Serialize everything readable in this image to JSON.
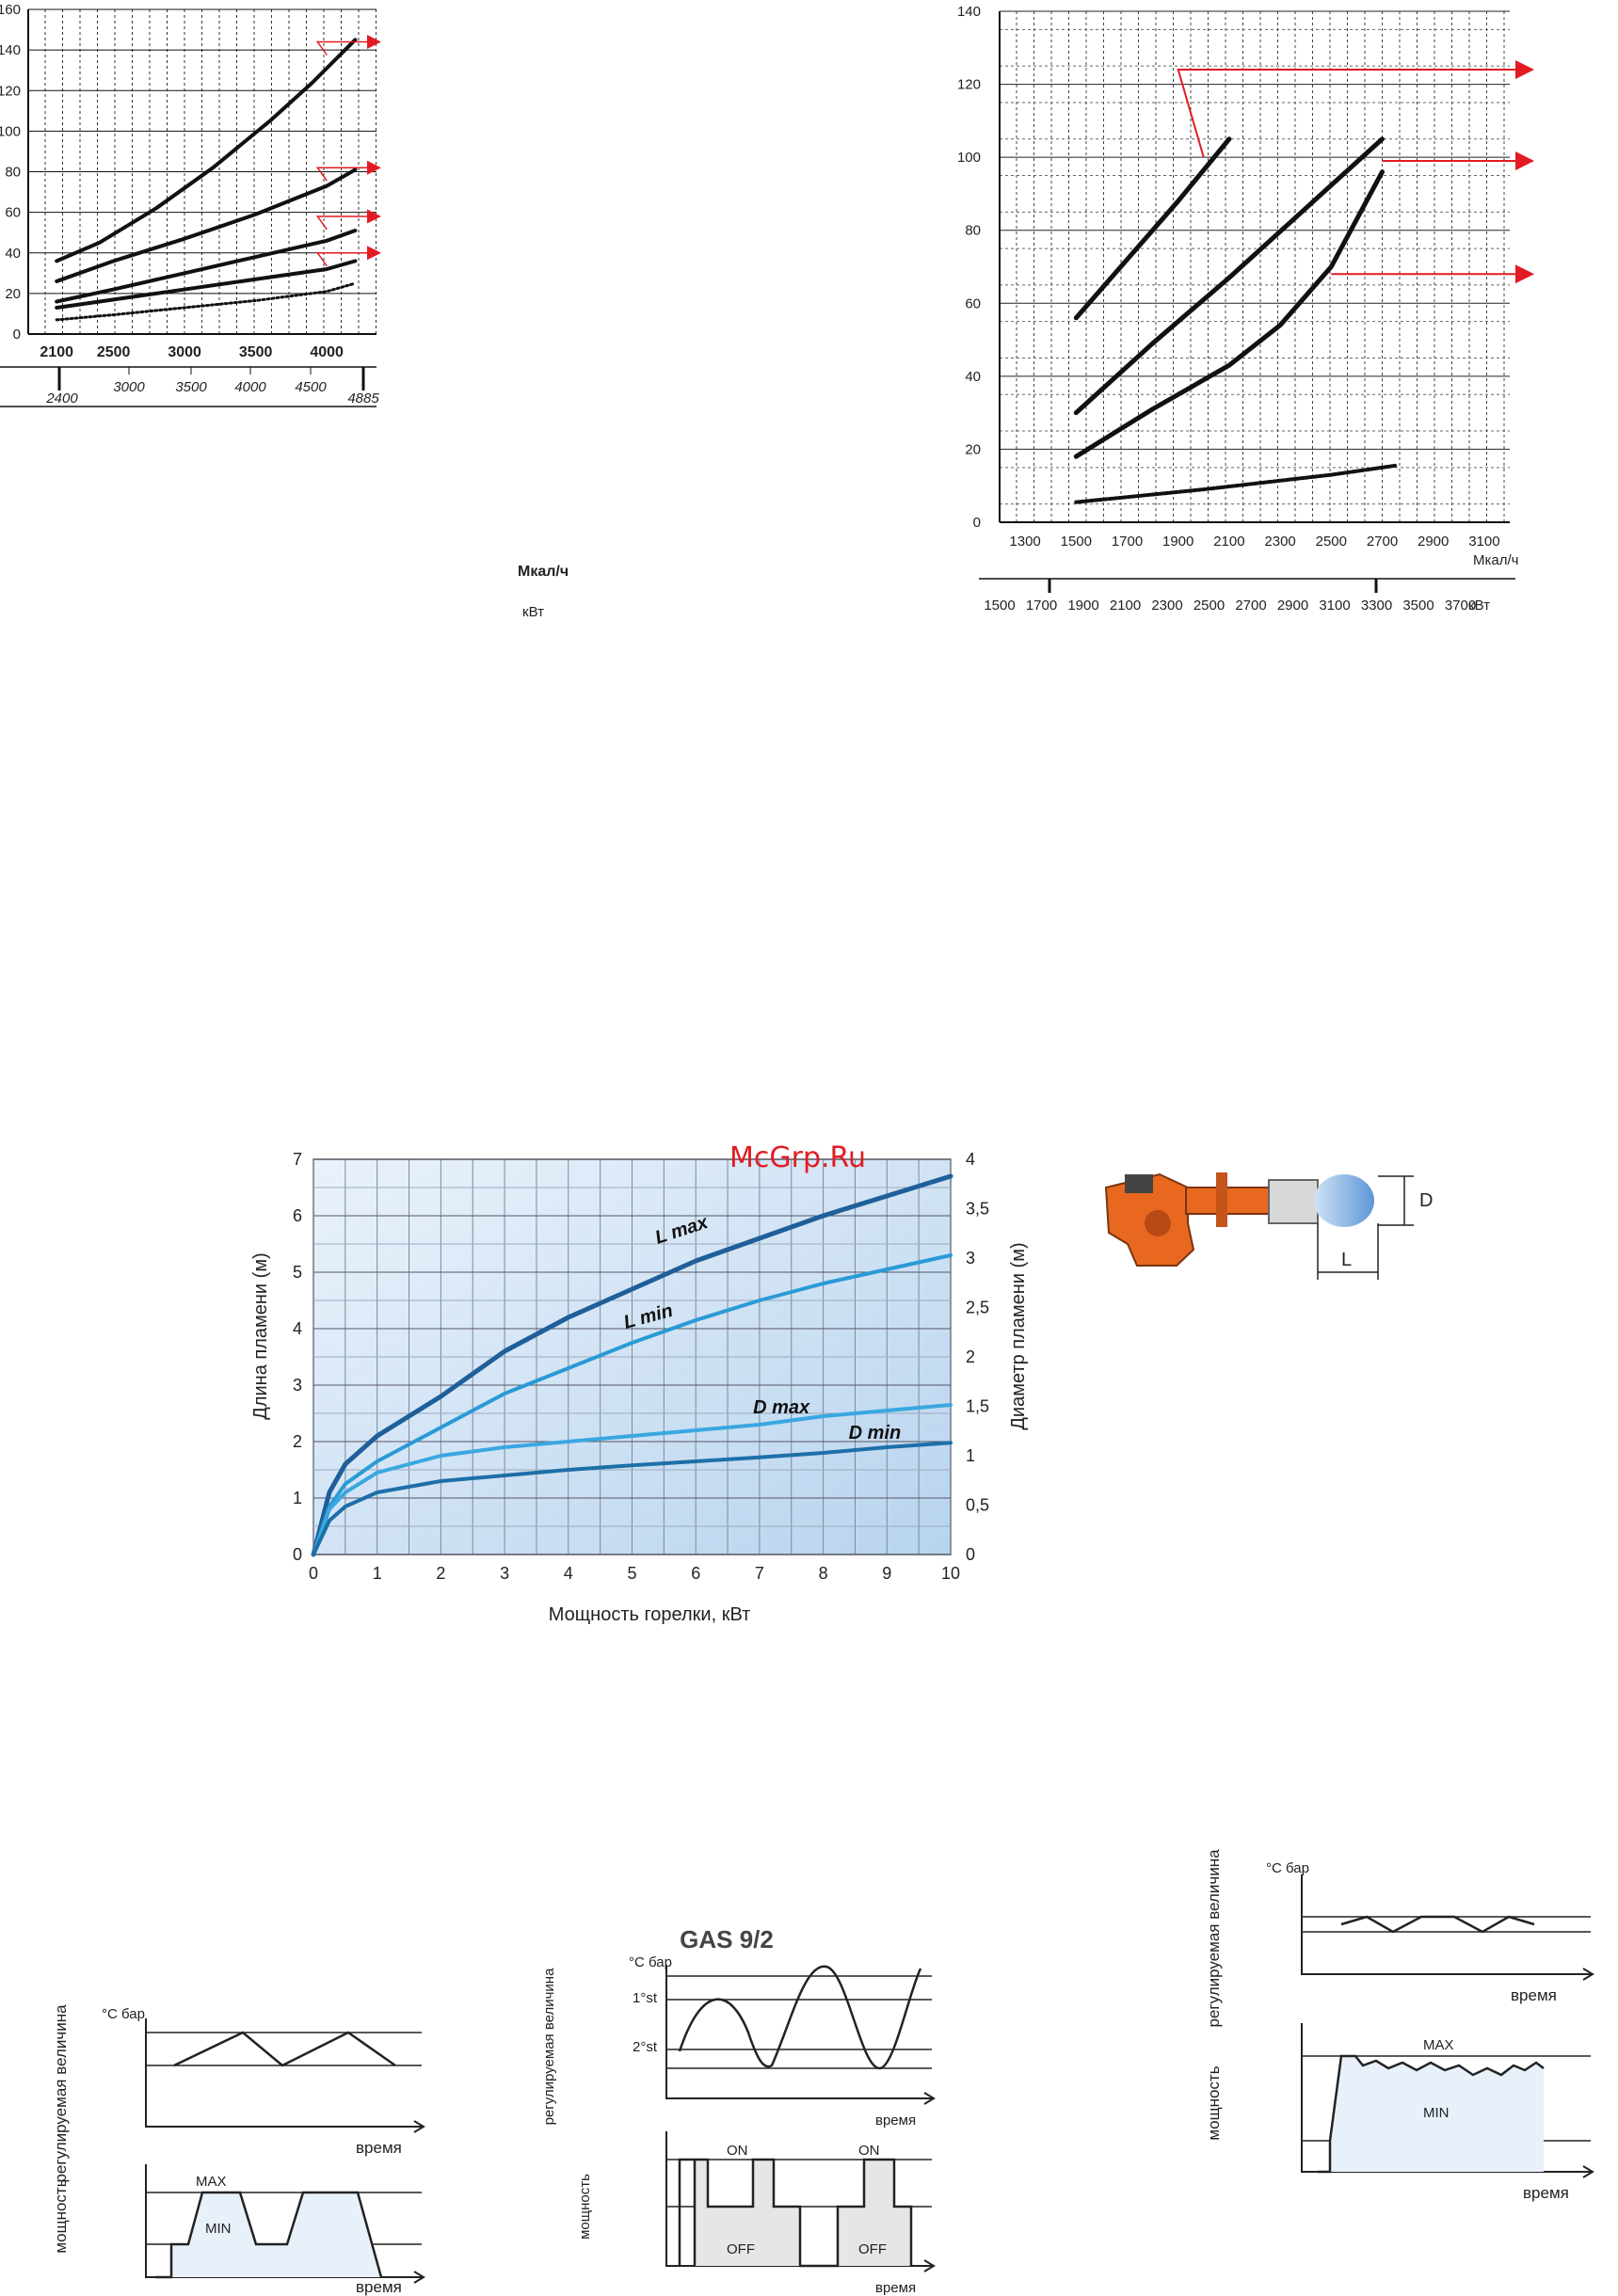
{
  "watermark": "McGrp.Ru",
  "chart_data": [
    {
      "id": "chart-a",
      "type": "line",
      "xlabel": "Мкал/ч",
      "x2label": "кВт",
      "ylim": [
        0,
        160
      ],
      "yticks": [
        0,
        20,
        40,
        60,
        80,
        100,
        120,
        140,
        160
      ],
      "xlim": [
        1900,
        4350
      ],
      "xticks": [
        2100,
        2500,
        3000,
        3500,
        4000
      ],
      "x2ticks": [
        "3000",
        "3500",
        "4000",
        "4500"
      ],
      "x2end_labels": [
        "2400",
        "4885"
      ],
      "series": [
        {
          "x": [
            2100,
            2400,
            2800,
            3200,
            3600,
            3900,
            4200
          ],
          "y": [
            36,
            45,
            62,
            82,
            105,
            124,
            145
          ]
        },
        {
          "x": [
            2100,
            2500,
            3000,
            3500,
            4000,
            4200
          ],
          "y": [
            26,
            36,
            47,
            59,
            73,
            81
          ]
        },
        {
          "x": [
            2100,
            2500,
            3000,
            3500,
            4000,
            4200
          ],
          "y": [
            16,
            22,
            30,
            38,
            46,
            51
          ]
        },
        {
          "x": [
            2100,
            2500,
            3000,
            3500,
            4000,
            4200
          ],
          "y": [
            13,
            17,
            22,
            27,
            32,
            36
          ]
        },
        {
          "x": [
            2100,
            2500,
            3000,
            3500,
            4000,
            4200
          ],
          "y": [
            7,
            9.5,
            13,
            16.5,
            21,
            25
          ],
          "dotted": true
        }
      ],
      "arrows_y": [
        144,
        82,
        58,
        40
      ]
    },
    {
      "id": "chart-b",
      "type": "line",
      "xlabel": "Мкал/ч",
      "x2label": "кВт",
      "ylim": [
        0,
        140
      ],
      "yticks": [
        0,
        20,
        40,
        60,
        80,
        100,
        120,
        140
      ],
      "xlim": [
        1200,
        3200
      ],
      "xticks": [
        1300,
        1500,
        1700,
        1900,
        2100,
        2300,
        2500,
        2700,
        2900,
        3100
      ],
      "x2ticks": [
        "1500",
        "1700",
        "1900",
        "2100",
        "2300",
        "2500",
        "2700",
        "2900",
        "3100",
        "3300",
        "3500",
        "3700"
      ],
      "series": [
        {
          "x": [
            1500,
            1700,
            1900,
            2100
          ],
          "y": [
            56,
            72,
            88,
            105
          ]
        },
        {
          "x": [
            1500,
            1800,
            2100,
            2400,
            2700
          ],
          "y": [
            30,
            49,
            67,
            86,
            105
          ]
        },
        {
          "x": [
            1500,
            1800,
            2100,
            2300,
            2500,
            2700
          ],
          "y": [
            18,
            31,
            43,
            54,
            70,
            96
          ]
        },
        {
          "x": [
            1500,
            2000,
            2500,
            2750
          ],
          "y": [
            5.5,
            9,
            13,
            15.5
          ],
          "dotted": true
        }
      ],
      "arrows_y": [
        124,
        99,
        68
      ]
    },
    {
      "id": "chart-flame",
      "type": "line",
      "xlabel": "Мощность горелки, кВт",
      "ylabel": "Длина пламени (м)",
      "y2label": "Диаметр пламени (м)",
      "xlim": [
        0,
        10
      ],
      "ylim": [
        0,
        7
      ],
      "y2lim": [
        0,
        4
      ],
      "xticks": [
        "0",
        "1",
        "2",
        "3",
        "4",
        "5",
        "6",
        "7",
        "8",
        "9",
        "10"
      ],
      "yticks": [
        "0",
        "1",
        "2",
        "3",
        "4",
        "5",
        "6",
        "7"
      ],
      "y2ticks": [
        "0",
        "0,5",
        "1",
        "1,5",
        "2",
        "2,5",
        "3",
        "3,5",
        "4"
      ],
      "series": [
        {
          "name": "L max",
          "axis": "left",
          "x": [
            0,
            0.25,
            0.5,
            1,
            2,
            3,
            4,
            5,
            6,
            7,
            8,
            9,
            10
          ],
          "y": [
            0,
            1.1,
            1.6,
            2.1,
            2.8,
            3.6,
            4.2,
            4.7,
            5.2,
            5.6,
            6.0,
            6.35,
            6.7
          ],
          "color": "#1f5f99"
        },
        {
          "name": "L min",
          "axis": "left",
          "x": [
            0,
            0.25,
            0.5,
            1,
            2,
            3,
            4,
            5,
            6,
            7,
            8,
            9,
            10
          ],
          "y": [
            0,
            0.85,
            1.25,
            1.65,
            2.25,
            2.85,
            3.3,
            3.75,
            4.15,
            4.5,
            4.8,
            5.05,
            5.3
          ],
          "color": "#2a9ad6"
        },
        {
          "name": "D max",
          "axis": "left",
          "x": [
            0,
            0.25,
            0.5,
            1,
            2,
            3,
            4,
            5,
            6,
            7,
            8,
            9,
            10
          ],
          "y": [
            0,
            0.8,
            1.1,
            1.45,
            1.75,
            1.9,
            2.0,
            2.1,
            2.2,
            2.3,
            2.45,
            2.55,
            2.65
          ],
          "color": "#3aa7e0"
        },
        {
          "name": "D min",
          "axis": "left",
          "x": [
            0,
            0.25,
            0.5,
            1,
            2,
            3,
            4,
            5,
            6,
            7,
            8,
            9,
            10
          ],
          "y": [
            0,
            0.6,
            0.85,
            1.1,
            1.3,
            1.4,
            1.5,
            1.58,
            1.65,
            1.72,
            1.8,
            1.9,
            1.98
          ],
          "color": "#1e6fa8"
        }
      ]
    }
  ],
  "burner": {
    "label_d": "D",
    "label_l": "L"
  },
  "control_diagrams": {
    "title": "GAS 9/2",
    "left": {
      "ylabel_top": "регулируемая величина",
      "unit_top": "°C бар",
      "xlabel_top": "время",
      "ylabel_bottom": "мощность",
      "max": "MAX",
      "min": "MIN",
      "xlabel_bottom": "время"
    },
    "middle": {
      "ylabel_top": "регулируемая величина",
      "unit_top": "°C бар",
      "first_stage": "1°st",
      "second_stage": "2°st",
      "xlabel_top": "время",
      "ylabel_bottom": "мощность",
      "on": "ON",
      "off": "OFF",
      "xlabel_bottom": "время"
    },
    "right": {
      "ylabel_top": "регулируемая величина",
      "unit_top": "°C бар",
      "xlabel_top": "время",
      "ylabel_bottom": "мощность",
      "max": "MAX",
      "min": "MIN",
      "xlabel_bottom": "время"
    }
  }
}
